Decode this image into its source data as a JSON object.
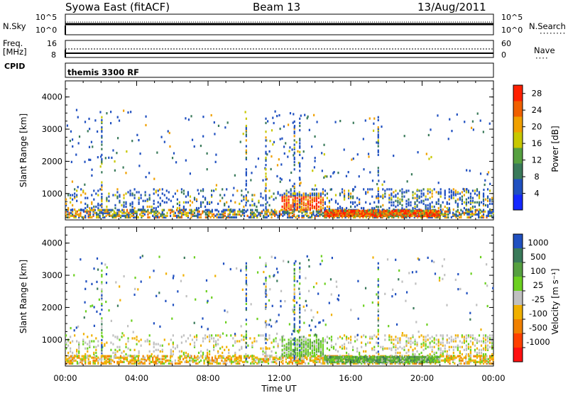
{
  "header": {
    "station": "Syowa East (fitACF)",
    "beam": "Beam 13",
    "date": "13/Aug/2011"
  },
  "strip_nsky": {
    "left_label": "N.Sky",
    "left_ticks": [
      "10^5",
      "10^0"
    ],
    "right_ticks": [
      "10^5",
      "10^0"
    ],
    "right_label": "N.Search"
  },
  "strip_freq": {
    "left_label_line1": "Freq.",
    "left_label_line2": "[MHz]",
    "left_ticks": [
      "16",
      "8"
    ],
    "right_ticks": [
      "60",
      "0"
    ],
    "right_label": "Nave"
  },
  "cpid": {
    "label": "CPID",
    "program": "themis 3300 RF"
  },
  "colors": {
    "power_scale": [
      "#1428ff",
      "#2050c0",
      "#3a7a5a",
      "#56a040",
      "#c8c800",
      "#f0a000",
      "#f06000",
      "#ff2000"
    ],
    "velocity_scale": [
      "#2050c0",
      "#3a7a5a",
      "#56a040",
      "#6cd020",
      "#c0c0c0",
      "#f0b000",
      "#f08000",
      "#ff4000",
      "#ff1010"
    ]
  },
  "chart_data": [
    {
      "type": "heatmap",
      "title": "",
      "xlabel": "",
      "ylabel": "Slant Range [km]",
      "x_ticks": [
        "00:00",
        "04:00",
        "08:00",
        "12:00",
        "16:00",
        "20:00",
        "00:00"
      ],
      "y_ticks": [
        "1000",
        "2000",
        "3000",
        "4000"
      ],
      "xlim_hours": [
        0,
        24
      ],
      "ylim_km": [
        180,
        4500
      ],
      "colorbar_label": "Power [dB]",
      "colorbar_ticks": [
        "28",
        "24",
        "20",
        "16",
        "12",
        "8",
        "4"
      ],
      "colorbar_range": [
        0,
        30
      ],
      "grid": false
    },
    {
      "type": "heatmap",
      "title": "",
      "xlabel": "Time UT",
      "ylabel": "Slant Range [km]",
      "x_ticks": [
        "00:00",
        "04:00",
        "08:00",
        "12:00",
        "16:00",
        "20:00",
        "00:00"
      ],
      "y_ticks": [
        "1000",
        "2000",
        "3000",
        "4000"
      ],
      "xlim_hours": [
        0,
        24
      ],
      "ylim_km": [
        180,
        4500
      ],
      "colorbar_label": "Velocity [m s⁻¹]",
      "colorbar_ticks": [
        "1000",
        "500",
        "100",
        "25",
        "-25",
        "-100",
        "-500",
        "-1000"
      ],
      "grid": false
    }
  ]
}
